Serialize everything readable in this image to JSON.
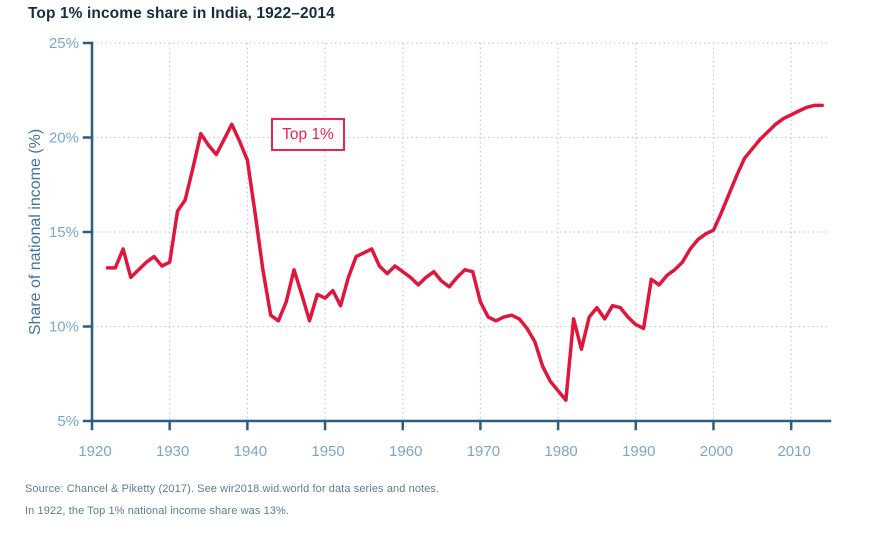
{
  "page": {
    "title": "Top 1% income share in India, 1922–2014",
    "source_line1": "Source: Chancel & Piketty (2017). See wir2018.wid.world for data series and notes.",
    "source_line2": "In 1922, the Top 1% national income share was 13%."
  },
  "colors": {
    "line": "#e0173d",
    "series_label": "#ee2150",
    "axis": "#2d5f7f",
    "tick_label": "#7aa6c9",
    "axis_title": "#41749c",
    "grid": "#c7cbce",
    "title_text": "#142f3c",
    "source_text": "#5e7d8d"
  },
  "chart_data": {
    "type": "line",
    "title": "Top 1% income share in India, 1922–2014",
    "xlabel": "",
    "ylabel": "Share of national income (%)",
    "series_label": "Top 1%",
    "grid": "dotted",
    "legend_position": "boxed label inside plot, upper-left area",
    "xlim": [
      1920,
      2015
    ],
    "ylim": [
      5,
      25
    ],
    "x_ticks": [
      1920,
      1930,
      1940,
      1950,
      1960,
      1970,
      1980,
      1990,
      2000,
      2010
    ],
    "x_tick_labels": [
      "1920",
      "1930",
      "1940",
      "1950",
      "1960",
      "1970",
      "1980",
      "1990",
      "2000",
      "2010"
    ],
    "y_ticks": [
      5,
      10,
      15,
      20,
      25
    ],
    "y_tick_labels": [
      "5%",
      "10%",
      "15%",
      "20%",
      "25%"
    ],
    "series": [
      {
        "name": "Top 1%",
        "x": [
          1922,
          1923,
          1924,
          1925,
          1926,
          1927,
          1928,
          1929,
          1930,
          1931,
          1932,
          1933,
          1934,
          1935,
          1936,
          1937,
          1938,
          1939,
          1940,
          1941,
          1942,
          1943,
          1944,
          1945,
          1946,
          1947,
          1948,
          1949,
          1950,
          1951,
          1952,
          1953,
          1954,
          1955,
          1956,
          1957,
          1958,
          1959,
          1960,
          1961,
          1962,
          1963,
          1964,
          1965,
          1966,
          1967,
          1968,
          1969,
          1970,
          1971,
          1972,
          1973,
          1974,
          1975,
          1976,
          1977,
          1978,
          1979,
          1980,
          1981,
          1982,
          1983,
          1984,
          1985,
          1986,
          1987,
          1988,
          1989,
          1990,
          1991,
          1992,
          1993,
          1994,
          1995,
          1996,
          1997,
          1998,
          1999,
          2000,
          2001,
          2002,
          2003,
          2004,
          2005,
          2006,
          2007,
          2008,
          2009,
          2010,
          2011,
          2012,
          2013,
          2014
        ],
        "y": [
          13.1,
          13.1,
          14.1,
          12.6,
          13.0,
          13.4,
          13.7,
          13.2,
          13.4,
          16.1,
          16.7,
          18.4,
          20.2,
          19.6,
          19.1,
          19.9,
          20.7,
          19.8,
          18.8,
          16.0,
          13.0,
          10.6,
          10.3,
          11.3,
          13.0,
          11.7,
          10.3,
          11.7,
          11.5,
          11.9,
          11.1,
          12.6,
          13.7,
          13.9,
          14.1,
          13.2,
          12.8,
          13.2,
          12.9,
          12.6,
          12.2,
          12.6,
          12.9,
          12.4,
          12.1,
          12.6,
          13.0,
          12.9,
          11.3,
          10.5,
          10.3,
          10.5,
          10.6,
          10.4,
          9.9,
          9.2,
          7.9,
          7.1,
          6.6,
          6.1,
          10.4,
          8.8,
          10.5,
          11.0,
          10.4,
          11.1,
          11.0,
          10.5,
          10.1,
          9.9,
          12.5,
          12.2,
          12.7,
          13.0,
          13.4,
          14.1,
          14.6,
          14.9,
          15.1,
          16.0,
          17.0,
          18.0,
          18.9,
          19.4,
          19.9,
          20.3,
          20.7,
          21.0,
          21.2,
          21.4,
          21.6,
          21.7,
          21.7
        ]
      }
    ]
  }
}
